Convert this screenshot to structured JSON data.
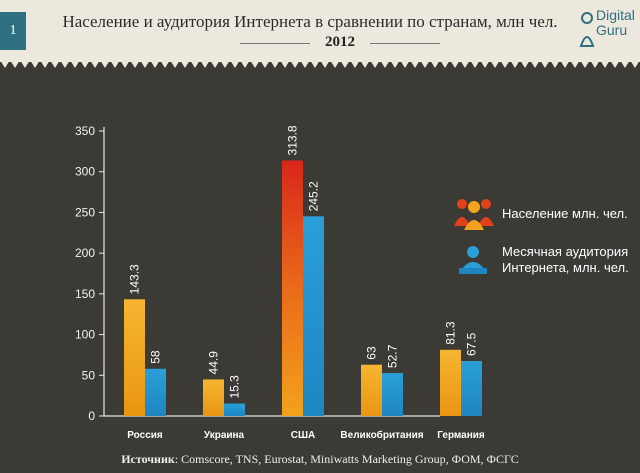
{
  "header": {
    "badge": "1",
    "title": "Население и аудитория Интернета в сравнении по странам, млн чел.",
    "year": "2012",
    "logo_line1": "Digital",
    "logo_line2": "Guru"
  },
  "legend": {
    "population_label": "Население млн. чел.",
    "audience_label": "Месячная аудитория Интернета, млн. чел."
  },
  "source": {
    "prefix": "Источник",
    "text": ": Comscore, TNS, Eurostat, Miniwatts Marketing Group, ФОМ, ФСГС"
  },
  "colors": {
    "population": "#f0a11c",
    "population_usa": "#e0401a",
    "audience": "#2a9fd8",
    "background": "#3b3a35"
  },
  "chart_data": {
    "type": "bar",
    "categories": [
      "Россия",
      "Украина",
      "США",
      "Великобритания",
      "Германия"
    ],
    "series": [
      {
        "name": "Население млн. чел.",
        "values": [
          143.3,
          44.9,
          313.8,
          63,
          81.3
        ],
        "labels": [
          "143.3",
          "44.9",
          "313.8",
          "63",
          "81.3"
        ]
      },
      {
        "name": "Месячная аудитория Интернета, млн. чел.",
        "values": [
          58,
          15.3,
          245.2,
          52.7,
          67.5
        ],
        "labels": [
          "58",
          "15.3",
          "245.2",
          "52.7",
          "67.5"
        ]
      }
    ],
    "yticks": [
      "0",
      "50",
      "100",
      "150",
      "200",
      "250",
      "300",
      "350"
    ],
    "ylim": [
      0,
      350
    ],
    "grid": false,
    "legend_position": "right"
  }
}
